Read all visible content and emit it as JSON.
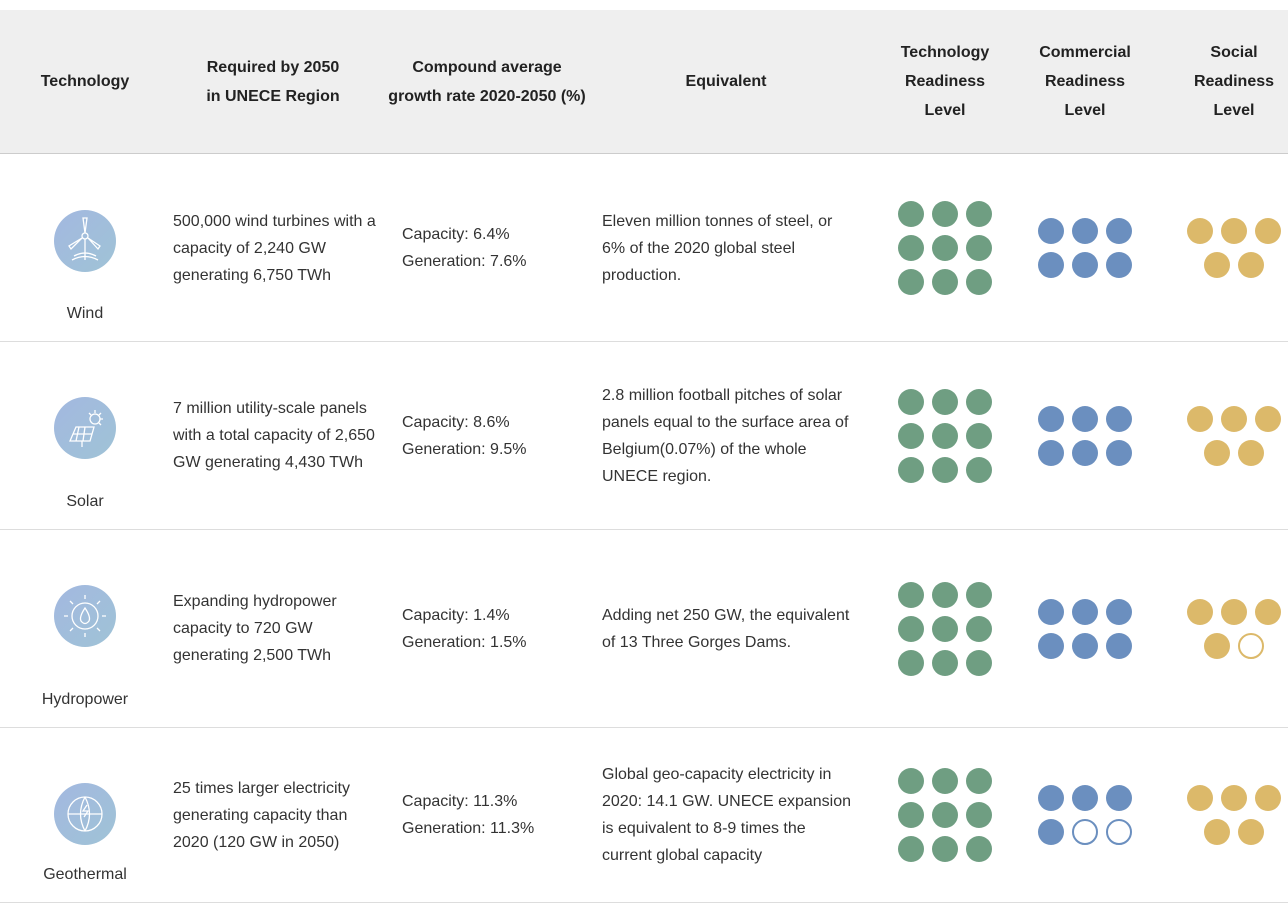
{
  "header": {
    "columns": [
      "Technology",
      "Required by 2050 in UNECE Region",
      "Compound average growth rate 2020-2050 (%)",
      "Equivalent",
      "Technology Readiness Level",
      "Commercial Readiness Level",
      "Social Readiness Level"
    ]
  },
  "readiness_max": [
    9,
    6,
    5
  ],
  "rows": [
    {
      "technology": "Wind",
      "required": "500,000 wind turbines with a capacity of 2,240 GW generating 6,750 TWh",
      "growth": [
        "Capacity: 6.4%",
        "Generation: 7.6%"
      ],
      "equivalent": "Eleven million tonnes of steel, or 6% of the 2020 global steel production.",
      "readiness": [
        9,
        6,
        5
      ]
    },
    {
      "technology": "Solar",
      "required": "7 million utility-scale panels with a total capacity of 2,650 GW generating 4,430 TWh",
      "growth": [
        "Capacity: 8.6%",
        "Generation: 9.5%"
      ],
      "equivalent": "2.8 million football pitches of solar panels equal to the surface area of Belgium(0.07%) of the whole UNECE region.",
      "readiness": [
        9,
        6,
        5
      ]
    },
    {
      "technology": "Hydropower",
      "required": "Expanding hydropower capacity to 720 GW generating 2,500 TWh",
      "growth": [
        "Capacity: 1.4%",
        "Generation: 1.5%"
      ],
      "equivalent": "Adding net 250 GW, the equivalent of 13 Three Gorges Dams.",
      "readiness": [
        9,
        6,
        4
      ]
    },
    {
      "technology": "Geothermal",
      "required": "25 times larger electricity generating capacity than 2020 (120 GW in 2050)",
      "growth": [
        "Capacity: 11.3%",
        "Generation: 11.3%"
      ],
      "equivalent": "Global geo-capacity electricity in 2020: 14.1 GW.  UNECE expansion is equivalent to 8-9 times the current global capacity",
      "readiness": [
        9,
        4,
        5
      ]
    }
  ]
}
